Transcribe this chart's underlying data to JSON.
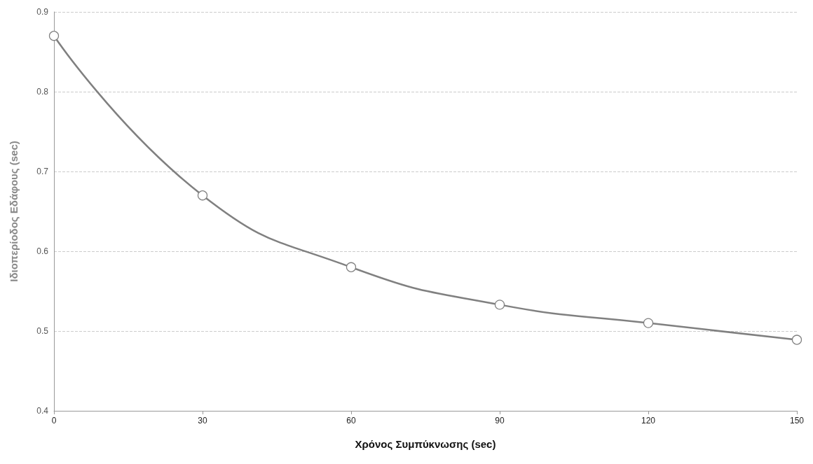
{
  "chart_data": {
    "type": "line",
    "xlabel": "Χρόνος Συμπύκνωσης (sec)",
    "ylabel": "Ιδιοπερίοδος Εδάφους (sec)",
    "x": [
      0,
      30,
      60,
      90,
      120,
      150
    ],
    "series": [
      {
        "color": "#808080",
        "values": [
          0.87,
          0.67,
          0.58,
          0.533,
          0.51,
          0.489
        ]
      }
    ],
    "xlim": [
      0,
      150
    ],
    "xticks": [
      0,
      30,
      60,
      90,
      120,
      150
    ],
    "ylim": [
      0.4,
      0.9
    ],
    "yticks": [
      0.4,
      0.5,
      0.6,
      0.7,
      0.8,
      0.9
    ],
    "grid": "y",
    "marker": "circle",
    "line_style": "solid"
  }
}
